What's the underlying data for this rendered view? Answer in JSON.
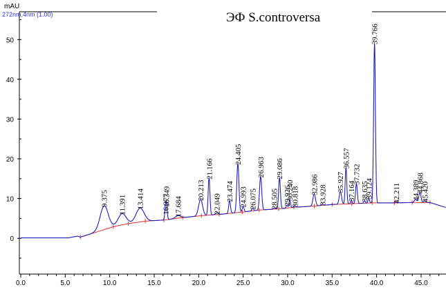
{
  "chart_data": {
    "type": "line",
    "title": "ЭФ S.controversa",
    "ylabel": "mAU",
    "signal_label": "272nm,4nm (1.00)",
    "xlim": [
      0,
      47.8
    ],
    "ylim": [
      -9,
      57
    ],
    "x_ticks": [
      0,
      5,
      10,
      15,
      20,
      25,
      30,
      35,
      40,
      45
    ],
    "x_tick_labels": [
      "0.0",
      "5.0",
      "10.0",
      "15.0",
      "20.0",
      "25.0",
      "30.0",
      "35.0",
      "40.0",
      "45.0"
    ],
    "y_ticks": [
      0,
      10,
      20,
      30,
      40,
      50
    ],
    "y_tick_labels": [
      "0",
      "10",
      "20",
      "30",
      "40",
      "50"
    ],
    "grid": false,
    "colors": {
      "trace": "#1f1fbf",
      "baseline": "#e03030",
      "signal_label": "#3333cc",
      "axis": "#000000"
    },
    "baseline_points": [
      [
        6.7,
        0.3
      ],
      [
        10.4,
        2.9
      ],
      [
        12.1,
        3.7
      ],
      [
        14.0,
        4.3
      ],
      [
        16.1,
        4.6
      ],
      [
        18.2,
        5.2
      ],
      [
        20.3,
        5.7
      ],
      [
        22.3,
        6.0
      ],
      [
        24.9,
        6.6
      ],
      [
        26.8,
        7.1
      ],
      [
        29.0,
        7.4
      ],
      [
        30.7,
        7.8
      ],
      [
        33.0,
        8.1
      ],
      [
        35.0,
        8.5
      ],
      [
        37.2,
        8.7
      ],
      [
        39.5,
        8.9
      ],
      [
        42.0,
        8.9
      ],
      [
        44.0,
        9.0
      ],
      [
        46.0,
        9.0
      ]
    ],
    "peaks": [
      {
        "rt": 9.375,
        "height": 8.2,
        "width": 0.45,
        "label": "9.375"
      },
      {
        "rt": 11.391,
        "height": 6.2,
        "width": 0.45,
        "label": "11.391"
      },
      {
        "rt": 13.414,
        "height": 7.6,
        "width": 0.45,
        "label": "13.414"
      },
      {
        "rt": 16.277,
        "height": 6.3,
        "width": 0.09,
        "label": "16.277"
      },
      {
        "rt": 16.349,
        "height": 8.2,
        "width": 0.1,
        "label": "16.349"
      },
      {
        "rt": 17.684,
        "height": 5.7,
        "width": 0.3,
        "label": "17.684"
      },
      {
        "rt": 20.213,
        "height": 9.8,
        "width": 0.22,
        "label": "20.213"
      },
      {
        "rt": 21.166,
        "height": 15.2,
        "width": 0.1,
        "label": "21.166"
      },
      {
        "rt": 22.049,
        "height": 6.4,
        "width": 0.15,
        "label": "22.049"
      },
      {
        "rt": 23.474,
        "height": 9.5,
        "width": 0.1,
        "label": "23.474"
      },
      {
        "rt": 24.405,
        "height": 18.8,
        "width": 0.12,
        "label": "24.405"
      },
      {
        "rt": 24.993,
        "height": 8.1,
        "width": 0.1,
        "label": "24.993"
      },
      {
        "rt": 26.075,
        "height": 7.6,
        "width": 0.1,
        "label": "26.075"
      },
      {
        "rt": 26.963,
        "height": 15.6,
        "width": 0.12,
        "label": "26.963"
      },
      {
        "rt": 28.505,
        "height": 7.6,
        "width": 0.12,
        "label": "28.505"
      },
      {
        "rt": 29.086,
        "height": 15.2,
        "width": 0.1,
        "label": "29.086"
      },
      {
        "rt": 29.926,
        "height": 8.4,
        "width": 0.08,
        "label": "29.926"
      },
      {
        "rt": 30.24,
        "height": 9.8,
        "width": 0.08,
        "label": "30.240"
      },
      {
        "rt": 30.818,
        "height": 8.2,
        "width": 0.1,
        "label": "30.818"
      },
      {
        "rt": 32.986,
        "height": 11.2,
        "width": 0.14,
        "label": "32.986"
      },
      {
        "rt": 33.928,
        "height": 8.6,
        "width": 0.12,
        "label": "33.928"
      },
      {
        "rt": 35.927,
        "height": 11.8,
        "width": 0.13,
        "label": "35.927"
      },
      {
        "rt": 36.557,
        "height": 17.8,
        "width": 0.09,
        "label": "36.557"
      },
      {
        "rt": 37.164,
        "height": 9.6,
        "width": 0.08,
        "label": "37.164"
      },
      {
        "rt": 37.732,
        "height": 13.8,
        "width": 0.1,
        "label": "37.732"
      },
      {
        "rt": 38.635,
        "height": 9.5,
        "width": 0.08,
        "label": "38.635"
      },
      {
        "rt": 39.124,
        "height": 10.2,
        "width": 0.08,
        "label": "39.124"
      },
      {
        "rt": 39.766,
        "height": 49.1,
        "width": 0.1,
        "label": "39.766"
      },
      {
        "rt": 42.211,
        "height": 9.1,
        "width": 0.15,
        "label": "42.211"
      },
      {
        "rt": 44.389,
        "height": 9.8,
        "width": 0.14,
        "label": "44.389"
      },
      {
        "rt": 44.868,
        "height": 11.6,
        "width": 0.12,
        "label": "44.868"
      },
      {
        "rt": 45.42,
        "height": 9.4,
        "width": 0.14,
        "label": "45.420"
      }
    ]
  }
}
